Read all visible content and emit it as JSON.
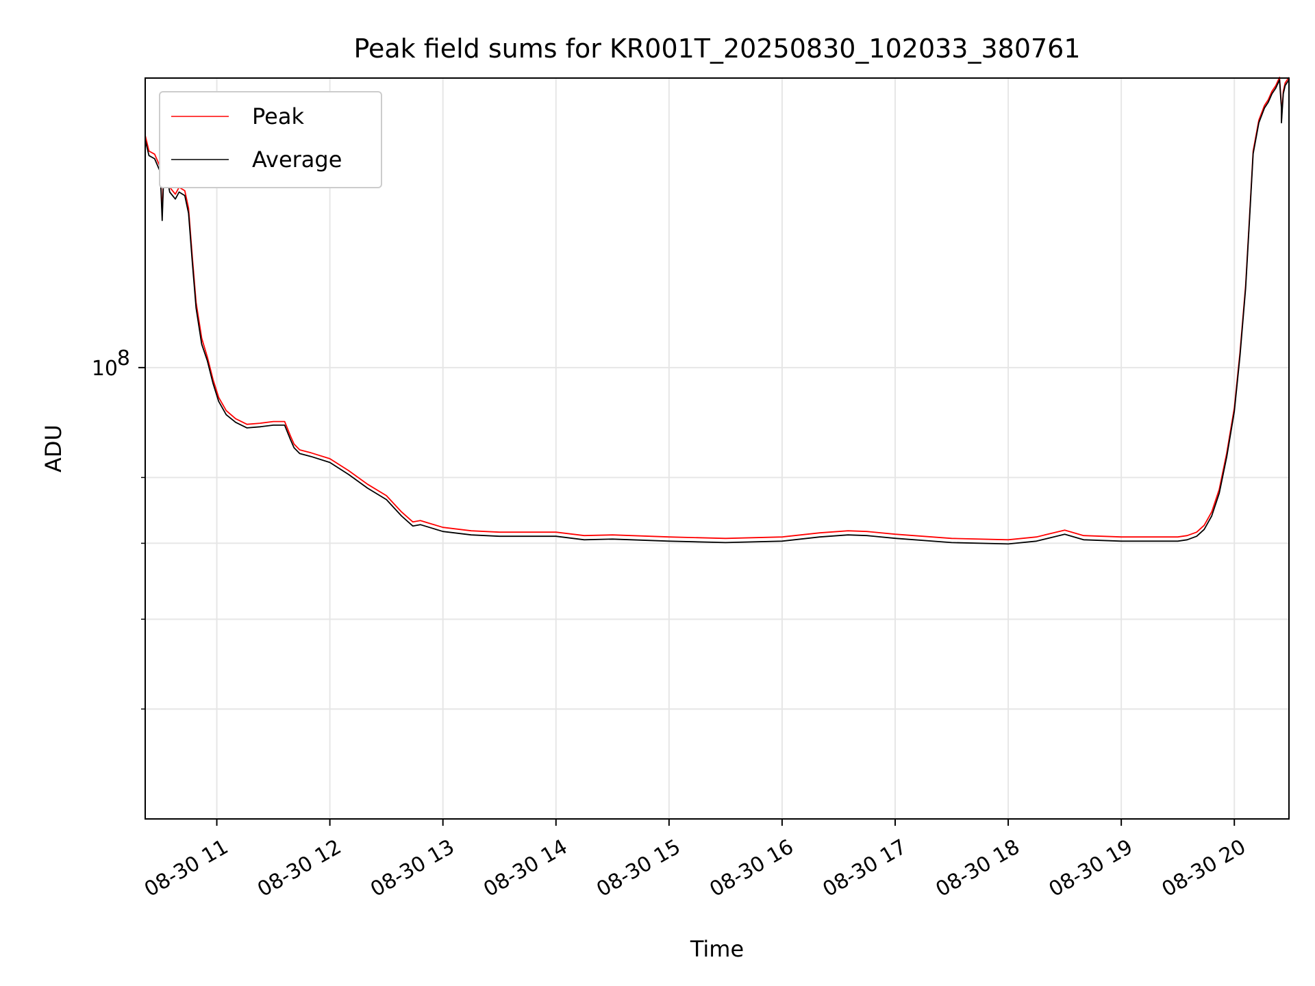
{
  "chart_data": {
    "type": "line",
    "title": "Peak field sums for KR001T_20250830_102033_380761",
    "xlabel": "Time",
    "ylabel": "ADU",
    "y_scale": "log",
    "ylim": [
      40000000,
      180000000
    ],
    "y_major_tick": {
      "value": 100000000,
      "label_base": "10",
      "label_exp": "8"
    },
    "y_minor_ticks": [
      50000000,
      60000000,
      70000000,
      80000000
    ],
    "xlim": [
      "2025-08-30 10:22",
      "2025-08-30 20:29"
    ],
    "x_ticks": [
      {
        "value": "2025-08-30 11:00",
        "label": "08-30 11"
      },
      {
        "value": "2025-08-30 12:00",
        "label": "08-30 12"
      },
      {
        "value": "2025-08-30 13:00",
        "label": "08-30 13"
      },
      {
        "value": "2025-08-30 14:00",
        "label": "08-30 14"
      },
      {
        "value": "2025-08-30 15:00",
        "label": "08-30 15"
      },
      {
        "value": "2025-08-30 16:00",
        "label": "08-30 16"
      },
      {
        "value": "2025-08-30 17:00",
        "label": "08-30 17"
      },
      {
        "value": "2025-08-30 18:00",
        "label": "08-30 18"
      },
      {
        "value": "2025-08-30 19:00",
        "label": "08-30 19"
      },
      {
        "value": "2025-08-30 20:00",
        "label": "08-30 20"
      }
    ],
    "grid": true,
    "legend_position": "upper-left",
    "x": [
      "2025-08-30 10:22",
      "2025-08-30 10:24",
      "2025-08-30 10:27",
      "2025-08-30 10:30",
      "2025-08-30 10:31",
      "2025-08-30 10:32",
      "2025-08-30 10:33",
      "2025-08-30 10:35",
      "2025-08-30 10:38",
      "2025-08-30 10:40",
      "2025-08-30 10:43",
      "2025-08-30 10:45",
      "2025-08-30 10:47",
      "2025-08-30 10:49",
      "2025-08-30 10:52",
      "2025-08-30 10:55",
      "2025-08-30 10:58",
      "2025-08-30 11:01",
      "2025-08-30 11:05",
      "2025-08-30 11:10",
      "2025-08-30 11:16",
      "2025-08-30 11:23",
      "2025-08-30 11:30",
      "2025-08-30 11:36",
      "2025-08-30 11:39",
      "2025-08-30 11:41",
      "2025-08-30 11:44",
      "2025-08-30 11:50",
      "2025-08-30 12:00",
      "2025-08-30 12:10",
      "2025-08-30 12:20",
      "2025-08-30 12:30",
      "2025-08-30 12:38",
      "2025-08-30 12:44",
      "2025-08-30 12:48",
      "2025-08-30 12:54",
      "2025-08-30 13:00",
      "2025-08-30 13:15",
      "2025-08-30 13:30",
      "2025-08-30 14:00",
      "2025-08-30 14:15",
      "2025-08-30 14:30",
      "2025-08-30 15:00",
      "2025-08-30 15:30",
      "2025-08-30 16:00",
      "2025-08-30 16:20",
      "2025-08-30 16:35",
      "2025-08-30 16:45",
      "2025-08-30 17:00",
      "2025-08-30 17:30",
      "2025-08-30 18:00",
      "2025-08-30 18:15",
      "2025-08-30 18:30",
      "2025-08-30 18:40",
      "2025-08-30 19:00",
      "2025-08-30 19:30",
      "2025-08-30 19:35",
      "2025-08-30 19:40",
      "2025-08-30 19:44",
      "2025-08-30 19:48",
      "2025-08-30 19:52",
      "2025-08-30 19:56",
      "2025-08-30 20:00",
      "2025-08-30 20:03",
      "2025-08-30 20:06",
      "2025-08-30 20:08",
      "2025-08-30 20:10",
      "2025-08-30 20:13",
      "2025-08-30 20:16",
      "2025-08-30 20:18",
      "2025-08-30 20:20",
      "2025-08-30 20:22",
      "2025-08-30 20:24",
      "2025-08-30 20:25",
      "2025-08-30 20:25",
      "2025-08-30 20:26",
      "2025-08-30 20:27",
      "2025-08-30 20:29"
    ],
    "series": [
      {
        "name": "Peak",
        "color": "#ff0000",
        "values": [
          160000000,
          155000000,
          154000000,
          150000000,
          136000000,
          152000000,
          150000000,
          144000000,
          142000000,
          144000000,
          143000000,
          138000000,
          125000000,
          114000000,
          106000000,
          102000000,
          97500000,
          94000000,
          91500000,
          90000000,
          89000000,
          89200000,
          89500000,
          89500000,
          87000000,
          85500000,
          84500000,
          84000000,
          83000000,
          81000000,
          78800000,
          77000000,
          74500000,
          73000000,
          73200000,
          72700000,
          72200000,
          71700000,
          71500000,
          71500000,
          71000000,
          71100000,
          70800000,
          70600000,
          70800000,
          71400000,
          71700000,
          71600000,
          71200000,
          70600000,
          70400000,
          70800000,
          71800000,
          71000000,
          70800000,
          70800000,
          71000000,
          71500000,
          72500000,
          74500000,
          78000000,
          84000000,
          92000000,
          103000000,
          118000000,
          135000000,
          155000000,
          165000000,
          170000000,
          172000000,
          175000000,
          177000000,
          180000000,
          170000000,
          165000000,
          175000000,
          178000000,
          180000000
        ]
      },
      {
        "name": "Average",
        "color": "#000000",
        "values": [
          159000000,
          154000000,
          153000000,
          149000000,
          135000000,
          151000000,
          149000000,
          143000000,
          141000000,
          143000000,
          142000000,
          137000000,
          124000000,
          113000000,
          105000000,
          101500000,
          97000000,
          93500000,
          91000000,
          89600000,
          88600000,
          88800000,
          89100000,
          89100000,
          86600000,
          85100000,
          84100000,
          83600000,
          82600000,
          80600000,
          78400000,
          76600000,
          74100000,
          72600000,
          72800000,
          72300000,
          71800000,
          71300000,
          71100000,
          71100000,
          70600000,
          70700000,
          70400000,
          70200000,
          70400000,
          71000000,
          71300000,
          71200000,
          70800000,
          70200000,
          70000000,
          70400000,
          71400000,
          70600000,
          70400000,
          70400000,
          70600000,
          71100000,
          72100000,
          74100000,
          77600000,
          83600000,
          91600000,
          102600000,
          117600000,
          134600000,
          154600000,
          164600000,
          169600000,
          171600000,
          174600000,
          176600000,
          179600000,
          169600000,
          164600000,
          174600000,
          177600000,
          179600000
        ]
      }
    ]
  }
}
